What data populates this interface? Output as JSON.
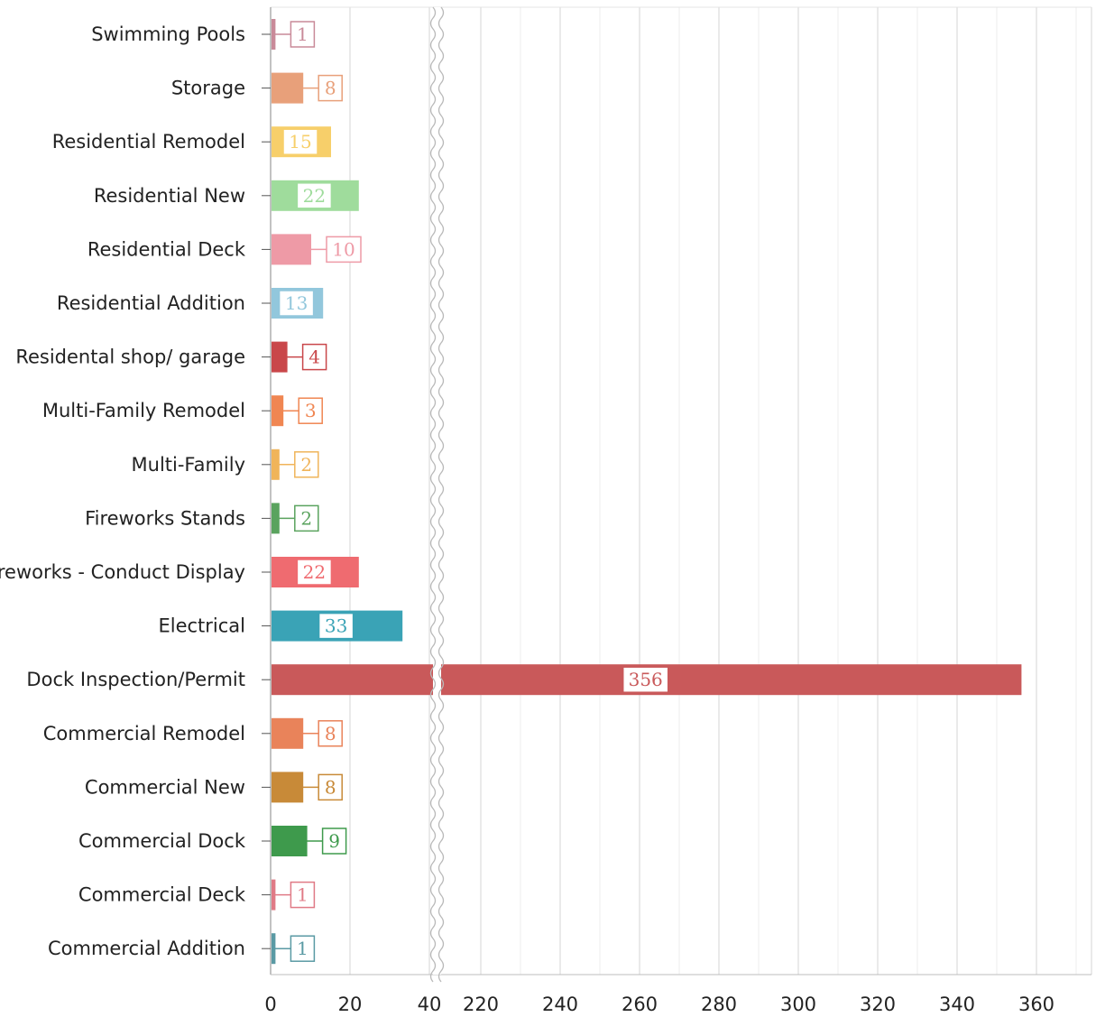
{
  "chart_data": {
    "type": "bar",
    "orientation": "horizontal",
    "title": "",
    "xlabel": "",
    "ylabel": "",
    "axis_break": [
      40,
      200
    ],
    "xlim": [
      0,
      370
    ],
    "grid": true,
    "legend": "none",
    "categories": [
      "Swimming Pools",
      "Storage",
      "Residential Remodel",
      "Residential New",
      "Residential Deck",
      "Residential Addition",
      "Residental shop/ garage",
      "Multi-Family Remodel",
      "Multi-Family",
      "Fireworks Stands",
      "Fireworks - Conduct Display",
      "Electrical",
      "Dock Inspection/Permit",
      "Commercial Remodel",
      "Commercial New",
      "Commercial Dock",
      "Commercial Deck",
      "Commercial Addition"
    ],
    "values": [
      1,
      8,
      15,
      22,
      10,
      13,
      4,
      3,
      2,
      2,
      22,
      33,
      356,
      8,
      8,
      9,
      1,
      1
    ],
    "colors": [
      "#c98a99",
      "#e8a07a",
      "#f7cf6a",
      "#9fdc9c",
      "#ee9aa6",
      "#92c7dc",
      "#c9474a",
      "#f08652",
      "#f0b45a",
      "#5aa35e",
      "#ef6b70",
      "#3aa3b6",
      "#c9595a",
      "#e9835a",
      "#c88a38",
      "#3e9a4c",
      "#e07a86",
      "#5a9aa4"
    ],
    "x_ticks": [
      0,
      20,
      40,
      220,
      240,
      260,
      280,
      300,
      320,
      340,
      360
    ],
    "x_tick_labels": [
      "0",
      "20",
      "40",
      "220",
      "240",
      "260",
      "280",
      "300",
      "320",
      "340",
      "360"
    ]
  }
}
